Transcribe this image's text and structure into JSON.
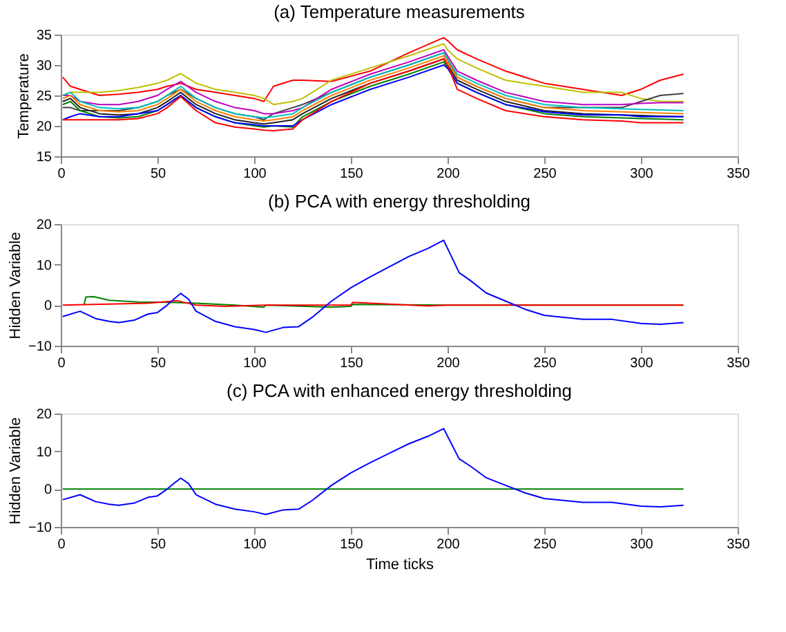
{
  "chart_data": [
    {
      "type": "line",
      "title": "(a) Temperature measurements",
      "ylabel": "Temperature",
      "xlim": [
        0,
        350
      ],
      "xticks": [
        0,
        50,
        100,
        150,
        200,
        250,
        300,
        350
      ],
      "ylim": [
        15,
        35
      ],
      "yticks": [
        15,
        20,
        25,
        30,
        35
      ],
      "grid": false,
      "legend": false,
      "x": [
        1,
        5,
        10,
        20,
        30,
        40,
        50,
        55,
        62,
        70,
        80,
        90,
        100,
        105,
        110,
        120,
        125,
        140,
        160,
        180,
        198,
        200,
        205,
        215,
        230,
        250,
        270,
        290,
        300,
        310,
        322
      ],
      "series": [
        {
          "color": "#ff0000",
          "values": [
            28,
            26.5,
            26,
            25,
            25.2,
            25.5,
            26,
            26.5,
            27,
            26,
            25.5,
            25,
            24.5,
            24,
            26.5,
            27.5,
            27.5,
            27.3,
            29,
            32,
            34.5,
            34,
            32.5,
            31,
            29,
            27,
            26,
            25,
            26,
            27.5,
            28.5
          ]
        },
        {
          "color": "#bfbf00",
          "values": [
            25,
            25.5,
            25.5,
            25.5,
            25.8,
            26.3,
            27,
            27.5,
            28.6,
            27,
            26,
            25.5,
            25,
            24.5,
            23.5,
            24,
            24.5,
            27.5,
            29.5,
            31.5,
            33.5,
            32.5,
            31,
            29.5,
            27.5,
            26.5,
            25.5,
            25.5,
            24.5,
            24,
            24
          ]
        },
        {
          "color": "#404040",
          "values": [
            23,
            23,
            22.5,
            22.5,
            22.5,
            23,
            24,
            25,
            26,
            24.5,
            23,
            22,
            21.5,
            21,
            22,
            23,
            23.5,
            25.5,
            28,
            30,
            32,
            31,
            28,
            26.5,
            24.5,
            23,
            23,
            23,
            24,
            25,
            25.3
          ]
        },
        {
          "color": "#bf00bf",
          "values": [
            25,
            25,
            24,
            23.5,
            23.5,
            24,
            25,
            26,
            27.3,
            25.5,
            24,
            23,
            22.5,
            22,
            22,
            22.5,
            23,
            26,
            28.5,
            30.5,
            32.5,
            31.5,
            29,
            27.5,
            25.5,
            24,
            23.5,
            23.5,
            23.7,
            23.8,
            23.8
          ]
        },
        {
          "color": "#00bfbf",
          "values": [
            25,
            25.5,
            24,
            23,
            22.8,
            23,
            24,
            25,
            26.5,
            24.5,
            23,
            22,
            21.5,
            21.3,
            21.5,
            22,
            23,
            25.5,
            28,
            30,
            32,
            31,
            28.5,
            27,
            25,
            23.5,
            23,
            22.8,
            22.7,
            22.6,
            22.5
          ]
        },
        {
          "color": "#ff8000",
          "values": [
            24.5,
            25,
            23.5,
            22.5,
            22.3,
            22.5,
            23.5,
            24.5,
            26,
            24,
            22.5,
            21.5,
            21,
            20.8,
            21,
            21.5,
            22.5,
            25,
            27.5,
            29.5,
            31.5,
            30.5,
            28,
            26.5,
            24.5,
            23,
            22.5,
            22.3,
            22.2,
            22.1,
            22
          ]
        },
        {
          "color": "#202020",
          "values": [
            24,
            24.5,
            23,
            22,
            21.8,
            22,
            23,
            24,
            25.5,
            23.5,
            22,
            21,
            20.5,
            20.3,
            20.5,
            21,
            22,
            24.5,
            27,
            29,
            31,
            30,
            27.5,
            26,
            24,
            22.5,
            22,
            21.8,
            21.7,
            21.6,
            21.5
          ]
        },
        {
          "color": "#008000",
          "values": [
            23.5,
            24,
            22.5,
            21.5,
            21.3,
            21.5,
            22.5,
            23.5,
            25,
            23,
            21.5,
            20.5,
            20,
            19.8,
            20,
            19.8,
            21.5,
            24,
            26.5,
            28.5,
            30.5,
            29.5,
            27,
            25.5,
            23.5,
            22,
            21.5,
            21.3,
            21.2,
            21.1,
            21
          ]
        },
        {
          "color": "#0000ff",
          "values": [
            21,
            21.5,
            22,
            21.5,
            21.5,
            22,
            22.5,
            23.5,
            25,
            23,
            21.5,
            20.5,
            20.2,
            20,
            20,
            20,
            21,
            23.5,
            26,
            28,
            30,
            29.5,
            27,
            25.5,
            23.5,
            22.3,
            21.8,
            21.8,
            21.5,
            21.5,
            21.5
          ]
        },
        {
          "color": "#ff0000",
          "values": [
            21,
            21,
            21,
            21,
            21,
            21.2,
            22,
            23,
            24.8,
            22.5,
            20.5,
            19.8,
            19.5,
            19.3,
            19.2,
            19.5,
            21,
            24,
            27,
            29,
            31,
            30,
            26,
            24.5,
            22.5,
            21.5,
            21,
            20.8,
            20.5,
            20.5,
            20.5
          ]
        }
      ]
    },
    {
      "type": "line",
      "title": "(b) PCA with energy thresholding",
      "ylabel": "Hidden Variable",
      "xlim": [
        0,
        350
      ],
      "xticks": [
        0,
        50,
        100,
        150,
        200,
        250,
        300,
        350
      ],
      "ylim": [
        -10,
        20
      ],
      "yticks": [
        -10,
        0,
        10,
        20
      ],
      "grid": false,
      "legend": false,
      "series": [
        {
          "color": "#008000",
          "x": [
            12,
            13,
            17,
            25,
            40,
            55,
            70,
            90,
            105,
            106,
            140,
            150,
            151,
            200,
            322
          ],
          "values": [
            0,
            2,
            2.1,
            1.2,
            0.8,
            0.7,
            0.5,
            0,
            -0.5,
            0,
            -0.5,
            -0.3,
            0.2,
            0,
            0
          ]
        },
        {
          "color": "#ff0000",
          "x": [
            1,
            45,
            60,
            70,
            85,
            106,
            150,
            151,
            190,
            200,
            322
          ],
          "values": [
            0,
            0.5,
            1.1,
            0,
            -0.3,
            0,
            0,
            0.7,
            -0.2,
            0,
            0
          ]
        },
        {
          "color": "#0000ff",
          "x": [
            1,
            10,
            18,
            25,
            30,
            38,
            45,
            50,
            55,
            58,
            62,
            66,
            70,
            80,
            90,
            100,
            106,
            115,
            123,
            130,
            140,
            150,
            160,
            170,
            180,
            190,
            198,
            202,
            206,
            212,
            220,
            230,
            240,
            250,
            260,
            270,
            285,
            300,
            310,
            322
          ],
          "values": [
            -2.8,
            -1.5,
            -3.3,
            -4,
            -4.3,
            -3.7,
            -2.2,
            -1.8,
            0,
            1.3,
            2.9,
            1.5,
            -1.5,
            -4,
            -5.3,
            -6,
            -6.7,
            -5.5,
            -5.3,
            -3,
            1,
            4.3,
            7,
            9.5,
            12,
            14,
            16,
            12,
            8,
            6,
            3,
            1,
            -1,
            -2.5,
            -3,
            -3.5,
            -3.5,
            -4.5,
            -4.7,
            -4.3
          ]
        }
      ]
    },
    {
      "type": "line",
      "title": "(c) PCA with enhanced energy thresholding",
      "ylabel": "Hidden Variable",
      "xlabel": "Time ticks",
      "xlim": [
        0,
        350
      ],
      "xticks": [
        0,
        50,
        100,
        150,
        200,
        250,
        300,
        350
      ],
      "ylim": [
        -10,
        20
      ],
      "yticks": [
        -10,
        0,
        10,
        20
      ],
      "grid": false,
      "legend": false,
      "series": [
        {
          "color": "#008000",
          "x": [
            1,
            322
          ],
          "values": [
            0,
            0
          ]
        },
        {
          "color": "#0000ff",
          "x": [
            1,
            10,
            18,
            25,
            30,
            38,
            45,
            50,
            55,
            58,
            62,
            66,
            70,
            80,
            90,
            100,
            106,
            115,
            123,
            130,
            140,
            150,
            160,
            170,
            180,
            190,
            198,
            202,
            206,
            212,
            220,
            230,
            240,
            250,
            260,
            270,
            285,
            300,
            310,
            322
          ],
          "values": [
            -2.8,
            -1.5,
            -3.3,
            -4,
            -4.3,
            -3.7,
            -2.2,
            -1.8,
            0,
            1.3,
            2.9,
            1.5,
            -1.5,
            -4,
            -5.3,
            -6,
            -6.7,
            -5.5,
            -5.3,
            -3,
            1,
            4.3,
            7,
            9.5,
            12,
            14,
            16,
            12,
            8,
            6,
            3,
            1,
            -1,
            -2.5,
            -3,
            -3.5,
            -3.5,
            -4.5,
            -4.7,
            -4.3
          ]
        }
      ]
    }
  ]
}
